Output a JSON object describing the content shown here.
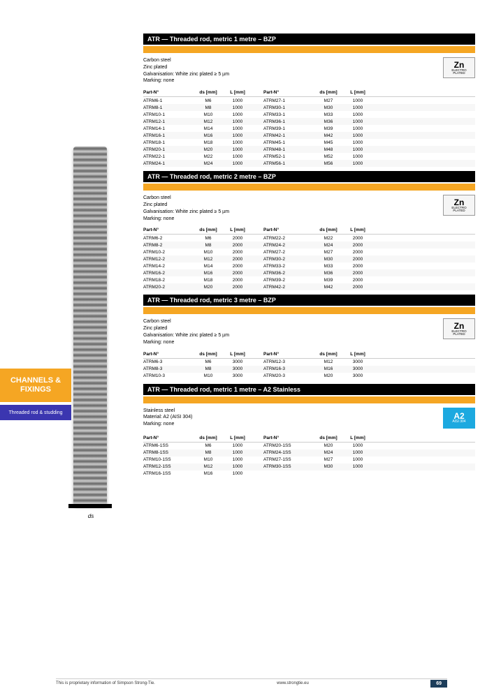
{
  "page_number": "69",
  "footer": {
    "left": "This is proprietary information of Simpson Strong-Tie.",
    "right": "www.strongtie.eu"
  },
  "side_tab": {
    "line1": "CHANNELS &",
    "line2": "FIXINGS"
  },
  "side_tab2": "Threaded rod & studding",
  "rod_dim": "ds",
  "sections": [
    {
      "title": "ATR — Threaded rod, metric 1 metre – BZP",
      "subtitle": "",
      "material_lines": [
        "Carbon steel",
        "Zinc plated",
        "Galvanisation: White zinc plated ≥ 5 µm",
        "Marking: none"
      ],
      "badge": "zn",
      "header_left": "Part-N°",
      "col_ds": "ds [mm]",
      "col_l": "L [mm]",
      "rows_l": [
        [
          "ATRM6-1",
          "M6",
          "1000"
        ],
        [
          "ATRM8-1",
          "M8",
          "1000"
        ],
        [
          "ATRM10-1",
          "M10",
          "1000"
        ],
        [
          "ATRM12-1",
          "M12",
          "1000"
        ],
        [
          "ATRM14-1",
          "M14",
          "1000"
        ],
        [
          "ATRM16-1",
          "M16",
          "1000"
        ],
        [
          "ATRM18-1",
          "M18",
          "1000"
        ],
        [
          "ATRM20-1",
          "M20",
          "1000"
        ],
        [
          "ATRM22-1",
          "M22",
          "1000"
        ],
        [
          "ATRM24-1",
          "M24",
          "1000"
        ]
      ],
      "rows_r": [
        [
          "ATRM27-1",
          "M27",
          "1000"
        ],
        [
          "ATRM30-1",
          "M30",
          "1000"
        ],
        [
          "ATRM33-1",
          "M33",
          "1000"
        ],
        [
          "ATRM36-1",
          "M36",
          "1000"
        ],
        [
          "ATRM39-1",
          "M39",
          "1000"
        ],
        [
          "ATRM42-1",
          "M42",
          "1000"
        ],
        [
          "ATRM45-1",
          "M45",
          "1000"
        ],
        [
          "ATRM48-1",
          "M48",
          "1000"
        ],
        [
          "ATRM52-1",
          "M52",
          "1000"
        ],
        [
          "ATRM56-1",
          "M56",
          "1000"
        ]
      ]
    },
    {
      "title": "ATR — Threaded rod, metric 2 metre – BZP",
      "subtitle": "",
      "material_lines": [
        "Carbon steel",
        "Zinc plated",
        "Galvanisation: White zinc plated ≥ 5 µm",
        "Marking: none"
      ],
      "badge": "zn",
      "header_left": "Part-N°",
      "col_ds": "ds [mm]",
      "col_l": "L [mm]",
      "rows_l": [
        [
          "ATRM6-2",
          "M6",
          "2000"
        ],
        [
          "ATRM8-2",
          "M8",
          "2000"
        ],
        [
          "ATRM10-2",
          "M10",
          "2000"
        ],
        [
          "ATRM12-2",
          "M12",
          "2000"
        ],
        [
          "ATRM14-2",
          "M14",
          "2000"
        ],
        [
          "ATRM16-2",
          "M16",
          "2000"
        ],
        [
          "ATRM18-2",
          "M18",
          "2000"
        ],
        [
          "ATRM20-2",
          "M20",
          "2000"
        ]
      ],
      "rows_r": [
        [
          "ATRM22-2",
          "M22",
          "2000"
        ],
        [
          "ATRM24-2",
          "M24",
          "2000"
        ],
        [
          "ATRM27-2",
          "M27",
          "2000"
        ],
        [
          "ATRM30-2",
          "M30",
          "2000"
        ],
        [
          "ATRM33-2",
          "M33",
          "2000"
        ],
        [
          "ATRM36-2",
          "M36",
          "2000"
        ],
        [
          "ATRM39-2",
          "M39",
          "2000"
        ],
        [
          "ATRM42-2",
          "M42",
          "2000"
        ]
      ]
    },
    {
      "title": "ATR — Threaded rod, metric 3 metre – BZP",
      "subtitle": "",
      "material_lines": [
        "Carbon steel",
        "Zinc plated",
        "Galvanisation: White zinc plated ≥ 5 µm",
        "Marking: none"
      ],
      "badge": "zn",
      "header_left": "Part-N°",
      "col_ds": "ds [mm]",
      "col_l": "L [mm]",
      "rows_l": [
        [
          "ATRM6-3",
          "M6",
          "3000"
        ],
        [
          "ATRM8-3",
          "M8",
          "3000"
        ],
        [
          "ATRM10-3",
          "M10",
          "3000"
        ]
      ],
      "rows_r": [
        [
          "ATRM12-3",
          "M12",
          "3000"
        ],
        [
          "ATRM16-3",
          "M16",
          "3000"
        ],
        [
          "ATRM20-3",
          "M20",
          "3000"
        ]
      ]
    },
    {
      "title": "ATR — Threaded rod, metric 1 metre – A2 Stainless",
      "subtitle": "",
      "material_lines": [
        "Stainless steel",
        "Material: A2 (AISI 304)",
        "Marking: none"
      ],
      "badge": "a2",
      "header_left": "Part-N°",
      "col_ds": "ds [mm]",
      "col_l": "L [mm]",
      "rows_l": [
        [
          "ATRM6-1SS",
          "M6",
          "1000"
        ],
        [
          "ATRM8-1SS",
          "M8",
          "1000"
        ],
        [
          "ATRM10-1SS",
          "M10",
          "1000"
        ],
        [
          "ATRM12-1SS",
          "M12",
          "1000"
        ],
        [
          "ATRM16-1SS",
          "M16",
          "1000"
        ]
      ],
      "rows_r": [
        [
          "ATRM20-1SS",
          "M20",
          "1000"
        ],
        [
          "ATRM24-1SS",
          "M24",
          "1000"
        ],
        [
          "ATRM27-1SS",
          "M27",
          "1000"
        ],
        [
          "ATRM30-1SS",
          "M30",
          "1000"
        ],
        [
          "",
          "",
          ""
        ]
      ]
    }
  ],
  "badges": {
    "zn": {
      "sym": "Zn",
      "sub1": "ELECTRO",
      "sub2": "PLATED"
    },
    "a2": {
      "sym": "A2",
      "sub1": "AISI 304"
    }
  }
}
